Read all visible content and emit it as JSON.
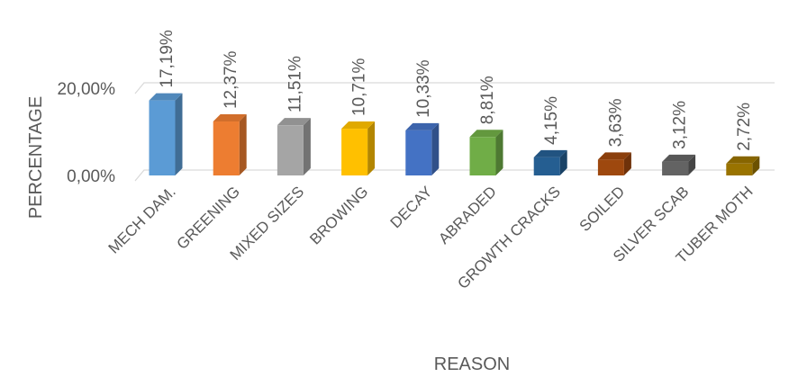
{
  "chart_data": {
    "type": "bar",
    "title": "",
    "xlabel": "REASON",
    "ylabel": "PERCENTAGE",
    "ylim": [
      0,
      20
    ],
    "yticks": [
      "0,00%",
      "20,00%"
    ],
    "grid": true,
    "legend": "none",
    "categories": [
      "MECH DAM.",
      "GREENING",
      "MIXED SIZES",
      "BROWING",
      "DECAY",
      "ABRADED",
      "GROWTH CRACKS",
      "SOILED",
      "SILVER SCAB",
      "TUBER MOTH"
    ],
    "values": [
      17.19,
      12.37,
      11.51,
      10.71,
      10.33,
      8.81,
      4.15,
      3.63,
      3.12,
      2.72
    ],
    "data_labels": [
      "17,19%",
      "12,37%",
      "11,51%",
      "10,71%",
      "10,33%",
      "8,81%",
      "4,15%",
      "3,63%",
      "3,12%",
      "2,72%"
    ],
    "colors": [
      "#5B9BD5",
      "#ED7D31",
      "#A5A5A5",
      "#FFC000",
      "#4472C4",
      "#70AD47",
      "#255E91",
      "#9E480E",
      "#636363",
      "#997300"
    ]
  }
}
